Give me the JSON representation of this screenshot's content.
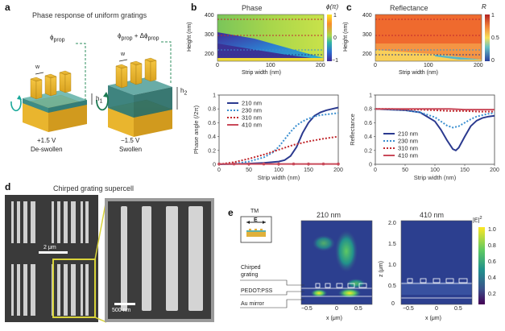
{
  "panels": {
    "a": {
      "letter": "a",
      "title": "Phase response of uniform gratings",
      "phi_left": "ϕ",
      "phi_left_sub": "prop",
      "phi_right": "ϕ",
      "phi_right_sub": "prop",
      "phi_right_mid": " + Δϕ",
      "phi_right_sub2": "prop",
      "w": "w",
      "h1": "h",
      "h1_sub": "1",
      "h2": "h",
      "h2_sub": "2",
      "left_voltage": "+1.5 V",
      "left_state": "De-swollen",
      "right_voltage": "−1.5 V",
      "right_state": "Swollen"
    },
    "b": {
      "letter": "b",
      "title": "Phase",
      "cbar_label": "ϕ(π)",
      "cbar_ticks": [
        "1",
        "0",
        "−1"
      ],
      "ylabel": "Height (nm)",
      "xlabel": "Strip width (nm)",
      "yticks": [
        "400",
        "300",
        "200"
      ],
      "xticks": [
        "0",
        "100",
        "200"
      ]
    },
    "c": {
      "letter": "c",
      "title": "Reflectance",
      "cbar_label": "R",
      "cbar_ticks": [
        "1",
        "0.5",
        "0"
      ],
      "ylabel": "Height (nm)",
      "xlabel": "Strip width (nm)",
      "yticks": [
        "400",
        "300",
        "200"
      ],
      "xticks": [
        "0",
        "100",
        "200"
      ]
    },
    "d": {
      "letter": "d",
      "title": "Chirped grating supercell",
      "scale_big": "2 μm",
      "scale_small": "500 nm"
    },
    "e": {
      "letter": "e",
      "tm": "TM",
      "field_vec": "E",
      "title_left": "210 nm",
      "title_right": "410 nm",
      "cbar_label": "|E|",
      "cbar_label_sup": "2",
      "cbar_ticks": [
        "1.0",
        "0.8",
        "0.6",
        "0.4",
        "0.2"
      ],
      "label_grating1": "Chirped",
      "label_grating2": "grating",
      "label_pedot": "PEDOT:PSS",
      "label_mirror": "Au mirror",
      "xlabel": "x (μm)",
      "ylabel": "z (μm)",
      "xticks_left": [
        "−0.5",
        "0",
        "0.5"
      ],
      "xticks_right": [
        "−0.5",
        "0",
        "0.5"
      ],
      "zticks": [
        "2.0",
        "1.5",
        "1.0",
        "0.5",
        "0"
      ]
    }
  },
  "colors": {
    "c210": "#2b3a8f",
    "c230": "#3a8fd0",
    "c310": "#c0282d",
    "c410": "#c94a5a"
  },
  "chart_data": [
    {
      "type": "line",
      "id": "phase-angle",
      "title": "",
      "xlabel": "Strip width (nm)",
      "ylabel": "Phase angle (/2π)",
      "xlim": [
        0,
        200
      ],
      "ylim": [
        0,
        1.0
      ],
      "xticks": [
        0,
        50,
        100,
        150,
        200
      ],
      "yticks": [
        0,
        0.2,
        0.4,
        0.6,
        0.8,
        1.0
      ],
      "legend_position": "top-left",
      "series": [
        {
          "name": "210 nm",
          "style": "solid",
          "x": [
            0,
            25,
            50,
            75,
            100,
            110,
            120,
            130,
            140,
            150,
            160,
            170,
            180,
            190,
            200
          ],
          "y": [
            0,
            0.005,
            0.01,
            0.02,
            0.04,
            0.06,
            0.12,
            0.25,
            0.45,
            0.6,
            0.7,
            0.75,
            0.78,
            0.8,
            0.82
          ]
        },
        {
          "name": "230 nm",
          "style": "dotted",
          "x": [
            0,
            25,
            50,
            75,
            90,
            100,
            110,
            120,
            130,
            140,
            150,
            160,
            170,
            180,
            190,
            200
          ],
          "y": [
            0,
            0.01,
            0.04,
            0.1,
            0.17,
            0.25,
            0.36,
            0.47,
            0.56,
            0.62,
            0.66,
            0.69,
            0.71,
            0.72,
            0.73,
            0.74
          ]
        },
        {
          "name": "310 nm",
          "style": "dotted",
          "x": [
            0,
            25,
            50,
            75,
            100,
            125,
            150,
            175,
            200
          ],
          "y": [
            0,
            0.03,
            0.08,
            0.14,
            0.21,
            0.28,
            0.33,
            0.37,
            0.4
          ]
        },
        {
          "name": "410 nm",
          "style": "solid",
          "x": [
            0,
            25,
            50,
            75,
            100,
            125,
            150,
            175,
            200
          ],
          "y": [
            0.005,
            0.005,
            0.005,
            0.005,
            0.005,
            0.005,
            0.005,
            0.005,
            0.005
          ]
        }
      ]
    },
    {
      "type": "line",
      "id": "reflectance",
      "title": "",
      "xlabel": "Strip width (nm)",
      "ylabel": "Reflectance",
      "xlim": [
        0,
        200
      ],
      "ylim": [
        0,
        1.0
      ],
      "xticks": [
        0,
        50,
        100,
        150,
        200
      ],
      "yticks": [
        0,
        0.2,
        0.4,
        0.6,
        0.8,
        1.0
      ],
      "legend_position": "bottom-left",
      "series": [
        {
          "name": "210 nm",
          "style": "solid",
          "x": [
            0,
            25,
            50,
            75,
            100,
            110,
            120,
            130,
            135,
            140,
            150,
            160,
            170,
            180,
            190,
            200
          ],
          "y": [
            0.8,
            0.79,
            0.78,
            0.75,
            0.62,
            0.5,
            0.35,
            0.22,
            0.2,
            0.24,
            0.4,
            0.55,
            0.63,
            0.67,
            0.69,
            0.7
          ]
        },
        {
          "name": "230 nm",
          "style": "dotted",
          "x": [
            0,
            25,
            50,
            75,
            100,
            110,
            120,
            130,
            140,
            150,
            160,
            170,
            180,
            190,
            200
          ],
          "y": [
            0.8,
            0.79,
            0.78,
            0.75,
            0.68,
            0.62,
            0.56,
            0.53,
            0.55,
            0.6,
            0.65,
            0.69,
            0.71,
            0.73,
            0.74
          ]
        },
        {
          "name": "310 nm",
          "style": "dotted",
          "x": [
            0,
            25,
            50,
            75,
            100,
            125,
            150,
            175,
            200
          ],
          "y": [
            0.8,
            0.8,
            0.79,
            0.79,
            0.78,
            0.77,
            0.77,
            0.76,
            0.76
          ]
        },
        {
          "name": "410 nm",
          "style": "solid",
          "x": [
            0,
            25,
            50,
            75,
            100,
            125,
            150,
            175,
            200
          ],
          "y": [
            0.8,
            0.8,
            0.8,
            0.8,
            0.8,
            0.8,
            0.79,
            0.79,
            0.79
          ]
        }
      ]
    }
  ]
}
